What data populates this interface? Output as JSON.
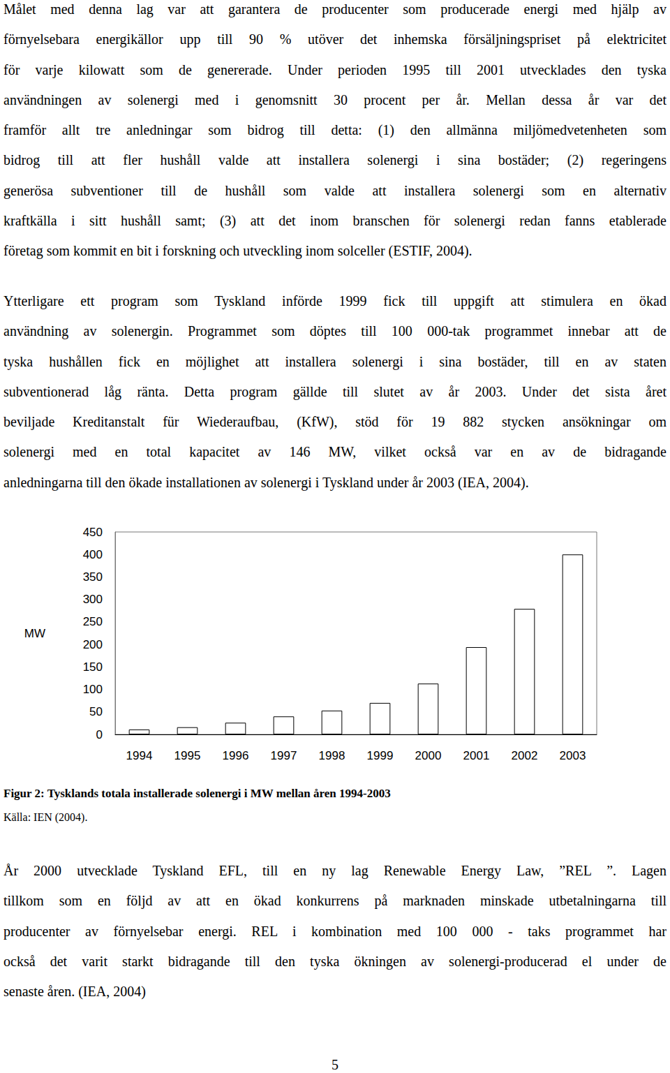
{
  "paragraphs": [
    {
      "lines": [
        "Målet med denna lag var att garantera de producenter som producerade energi med hjälp av",
        "förnyelsebara energikällor upp till 90 % utöver det inhemska försäljningspriset på elektricitet",
        "för varje kilowatt som de genererade. Under perioden 1995 till 2001 utvecklades den tyska",
        "användningen av solenergi med i genomsnitt 30 procent per år. Mellan dessa år var det",
        "framför allt tre anledningar som bidrog till detta: (1) den allmänna miljömedvetenheten som",
        "bidrog till att fler hushåll valde att installera solenergi i sina bostäder; (2) regeringens",
        "generösa subventioner till de hushåll som valde att installera solenergi som en alternativ",
        "kraftkälla i sitt hushåll samt; (3) att det inom branschen för solenergi redan fanns etablerade",
        "företag som kommit en bit i forskning och utveckling inom solceller (ESTIF, 2004)."
      ]
    },
    {
      "lines": [
        "Ytterligare ett program som Tyskland införde 1999 fick till uppgift att stimulera en ökad",
        "användning av solenergin. Programmet som döptes till 100 000-tak programmet innebar att de",
        "tyska hushållen fick en möjlighet att installera solenergi i sina bostäder, till en av staten",
        "subventionerad låg ränta. Detta program gällde till slutet av år 2003. Under det sista året",
        "beviljade Kreditanstalt für Wiederaufbau, (KfW), stöd för 19 882 stycken ansökningar om",
        "solenergi med en total kapacitet av 146  MW, vilket också var en av de bidragande",
        "anledningarna till den ökade installationen av solenergi i Tyskland under år 2003 (IEA, 2004)."
      ]
    },
    {
      "lines": [
        "År 2000 utvecklade Tyskland EFL, till en ny lag Renewable Energy Law, ”REL ”. Lagen",
        "tillkom som en följd av att en ökad konkurrens på marknaden minskade utbetalningarna till",
        "producenter av förnyelsebar energi. REL i kombination med 100 000 - taks programmet har",
        "också det varit starkt bidragande till den tyska ökningen av solenergi-producerad el under de",
        "senaste åren. (IEA, 2004)"
      ]
    }
  ],
  "chart_data": {
    "type": "bar",
    "categories": [
      "1994",
      "1995",
      "1996",
      "1997",
      "1998",
      "1999",
      "2000",
      "2001",
      "2002",
      "2003"
    ],
    "values": [
      11,
      16,
      26,
      40,
      53,
      70,
      113,
      194,
      279,
      400
    ],
    "color": "#ffffff",
    "ylabel": "MW",
    "ylim": [
      0,
      450
    ],
    "yticks": [
      0,
      50,
      100,
      150,
      200,
      250,
      300,
      350,
      400,
      450
    ],
    "grid": false
  },
  "caption": "Figur 2: Tysklands totala installerade solenergi i MW mellan åren 1994-2003",
  "source": "Källa: IEN (2004).",
  "page_number": "5"
}
